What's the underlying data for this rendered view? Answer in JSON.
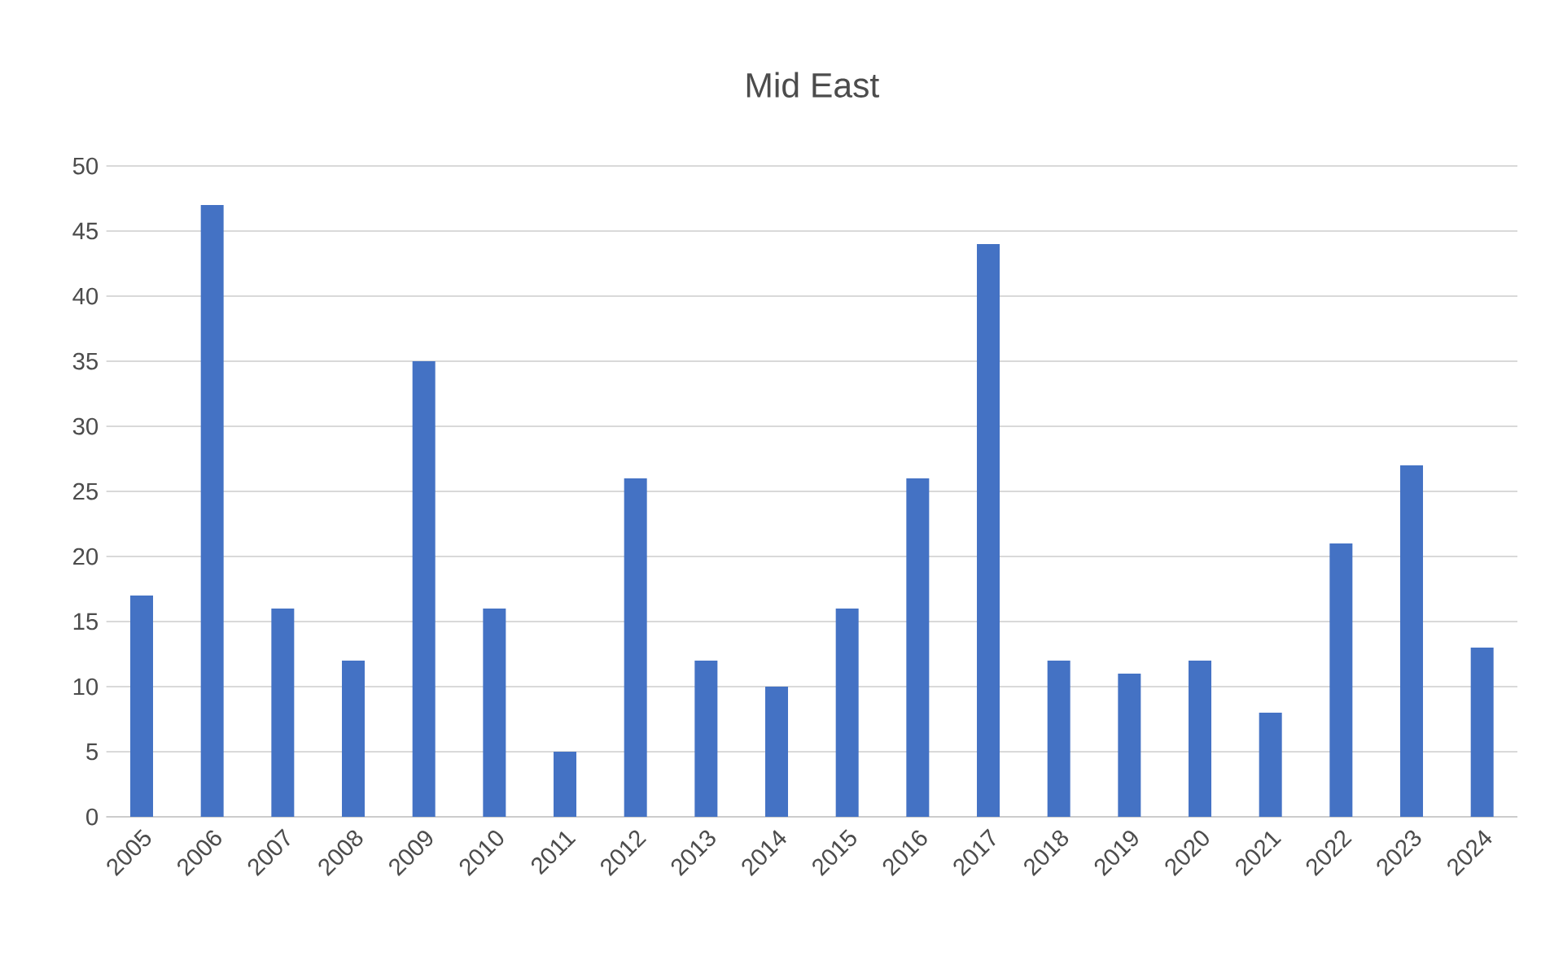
{
  "chart_data": {
    "type": "bar",
    "title": "Mid East",
    "categories": [
      "2005",
      "2006",
      "2007",
      "2008",
      "2009",
      "2010",
      "2011",
      "2012",
      "2013",
      "2014",
      "2015",
      "2016",
      "2017",
      "2018",
      "2019",
      "2020",
      "2021",
      "2022",
      "2023",
      "2024"
    ],
    "values": [
      17,
      47,
      16,
      12,
      35,
      16,
      5,
      26,
      12,
      10,
      16,
      26,
      44,
      12,
      11,
      12,
      8,
      21,
      27,
      13
    ],
    "color": "#4472c4",
    "ylim": [
      0,
      50
    ],
    "yticks": [
      0,
      5,
      10,
      15,
      20,
      25,
      30,
      35,
      40,
      45,
      50
    ],
    "grid": "y"
  }
}
